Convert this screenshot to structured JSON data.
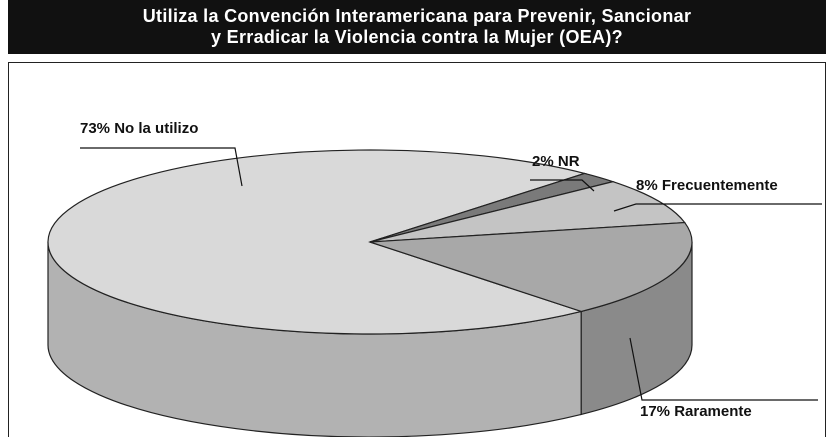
{
  "chart_data": {
    "type": "pie",
    "title": "Utiliza la Convención Interamericana para Prevenir, Sancionar y Erradicar la Violencia contra la Mujer (OEA)?",
    "categories": [
      "No la utilizo",
      "NR",
      "Frecuentemente",
      "Raramente"
    ],
    "values": [
      73,
      2,
      8,
      17
    ],
    "value_labels": [
      "73%",
      "2%",
      "8%",
      "17%"
    ],
    "colors": [
      "#d9d9d9",
      "#7a7a7a",
      "#c4c4c4",
      "#a8a8a8"
    ]
  }
}
